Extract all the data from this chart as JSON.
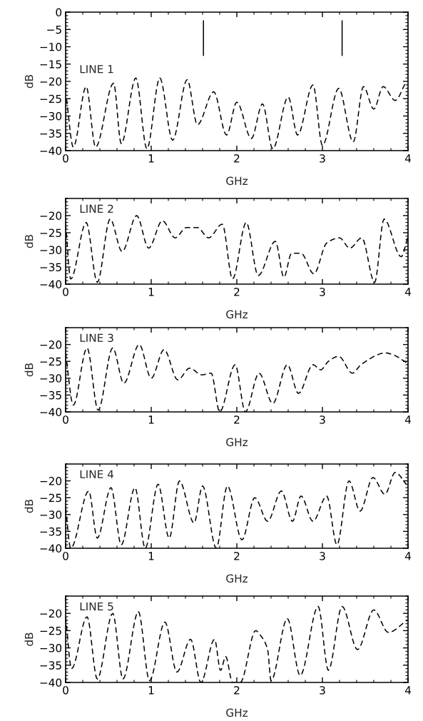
{
  "chart_data": [
    {
      "type": "line",
      "xlabel": "GHz",
      "ylabel": "dB",
      "annotations": [
        "LINE 1"
      ],
      "xlim": [
        0,
        4
      ],
      "xticks": [
        0,
        1,
        2,
        3,
        4
      ],
      "ylim": [
        -40,
        0
      ],
      "yticks": [
        -40,
        -35,
        -30,
        -25,
        -20,
        -15,
        -10,
        -5,
        0
      ],
      "line_style": "dashed",
      "series": [
        {
          "color": "#000000",
          "x": [
            0.01,
            0.09,
            0.24,
            0.35,
            0.56,
            0.65,
            0.82,
            0.95,
            1.1,
            1.25,
            1.42,
            1.54,
            1.73,
            1.88,
            2.0,
            2.17,
            2.3,
            2.42,
            2.6,
            2.71,
            2.89,
            3.0,
            3.19,
            3.36,
            3.48,
            3.6,
            3.71,
            3.85,
            3.97
          ],
          "values": [
            -25,
            -39,
            -21.5,
            -39,
            -20.5,
            -38,
            -19,
            -39.5,
            -19,
            -37,
            -19.5,
            -32.5,
            -23,
            -35.5,
            -26,
            -36.5,
            -26.5,
            -39.5,
            -24.5,
            -35.5,
            -21,
            -38.5,
            -22,
            -37.5,
            -21.5,
            -28,
            -21.5,
            -25.5,
            -20.5
          ]
        },
        {
          "color": "#000000",
          "line_style": "solid",
          "x": [
            1.61,
            1.61
          ],
          "values": [
            -2.5,
            -12.5
          ]
        },
        {
          "color": "#000000",
          "line_style": "solid",
          "x": [
            3.23,
            3.23
          ],
          "values": [
            -2.5,
            -12.5
          ]
        }
      ]
    },
    {
      "type": "line",
      "xlabel": "GHz",
      "ylabel": "dB",
      "annotations": [
        "LINE 2"
      ],
      "xlim": [
        0,
        4
      ],
      "xticks": [
        0,
        1,
        2,
        3,
        4
      ],
      "ylim": [
        -40,
        -15
      ],
      "yticks": [
        -40,
        -35,
        -30,
        -25,
        -20
      ],
      "line_style": "dashed",
      "series": [
        {
          "color": "#000000",
          "x": [
            0.0,
            0.06,
            0.24,
            0.37,
            0.52,
            0.66,
            0.83,
            0.97,
            1.13,
            1.28,
            1.41,
            1.54,
            1.67,
            1.83,
            1.95,
            2.11,
            2.25,
            2.45,
            2.55,
            2.64,
            2.75,
            2.9,
            3.05,
            3.2,
            3.32,
            3.46,
            3.61,
            3.72,
            3.92,
            4.0
          ],
          "values": [
            -22.5,
            -38.5,
            -22,
            -39.5,
            -21,
            -30.5,
            -20,
            -29.5,
            -21.5,
            -26.5,
            -23.5,
            -23.5,
            -26.5,
            -22.5,
            -38.5,
            -22,
            -37.5,
            -27.5,
            -38,
            -31,
            -31,
            -37,
            -28,
            -26.5,
            -29.5,
            -26.5,
            -39.5,
            -21,
            -32,
            -26
          ]
        }
      ]
    },
    {
      "type": "line",
      "xlabel": "GHz",
      "ylabel": "dB",
      "annotations": [
        "LINE 3"
      ],
      "xlim": [
        0,
        4
      ],
      "xticks": [
        0,
        1,
        2,
        3,
        4
      ],
      "ylim": [
        -40,
        -15
      ],
      "yticks": [
        -40,
        -35,
        -30,
        -25,
        -20
      ],
      "line_style": "dashed",
      "series": [
        {
          "color": "#000000",
          "x": [
            0.0,
            0.09,
            0.25,
            0.38,
            0.55,
            0.68,
            0.86,
            1.0,
            1.15,
            1.31,
            1.45,
            1.59,
            1.7,
            1.8,
            1.98,
            2.1,
            2.26,
            2.42,
            2.59,
            2.72,
            2.89,
            2.98,
            3.07,
            3.19,
            3.35,
            3.45,
            3.74,
            3.82,
            3.99
          ],
          "values": [
            -22.5,
            -38,
            -21,
            -39.5,
            -21,
            -31.5,
            -20,
            -30,
            -21.5,
            -30.5,
            -27,
            -29,
            -28.5,
            -40,
            -26,
            -40,
            -28.5,
            -37.5,
            -26,
            -34.5,
            -26,
            -27.5,
            -25,
            -23.5,
            -28.5,
            -26,
            -22.5,
            -23,
            -25.5
          ]
        }
      ]
    },
    {
      "type": "line",
      "xlabel": "GHz",
      "ylabel": "dB",
      "annotations": [
        "LINE 4"
      ],
      "xlim": [
        0,
        4
      ],
      "xticks": [
        0,
        1,
        2,
        3,
        4
      ],
      "ylim": [
        -40,
        -15
      ],
      "yticks": [
        -40,
        -35,
        -30,
        -25,
        -20
      ],
      "line_style": "dashed",
      "series": [
        {
          "color": "#000000",
          "x": [
            0.0,
            0.06,
            0.27,
            0.37,
            0.53,
            0.65,
            0.81,
            0.93,
            1.08,
            1.21,
            1.33,
            1.5,
            1.6,
            1.76,
            1.89,
            2.06,
            2.21,
            2.36,
            2.52,
            2.65,
            2.75,
            2.89,
            3.05,
            3.17,
            3.31,
            3.44,
            3.59,
            3.73,
            3.85,
            3.98
          ],
          "values": [
            -28,
            -40,
            -23,
            -37,
            -22,
            -39,
            -22,
            -40,
            -21,
            -37,
            -20,
            -32.5,
            -21.5,
            -40,
            -21.5,
            -37.5,
            -25,
            -32,
            -23,
            -32,
            -24.5,
            -32,
            -24.5,
            -39,
            -20,
            -29,
            -19,
            -24,
            -17.5,
            -21
          ]
        }
      ]
    },
    {
      "type": "line",
      "xlabel": "GHz",
      "ylabel": "dB",
      "annotations": [
        "LINE 5"
      ],
      "xlim": [
        0,
        4
      ],
      "xticks": [
        0,
        1,
        2,
        3,
        4
      ],
      "ylim": [
        -40,
        -15
      ],
      "yticks": [
        -40,
        -35,
        -30,
        -25,
        -20
      ],
      "line_style": "dashed",
      "series": [
        {
          "color": "#000000",
          "x": [
            0.0,
            0.07,
            0.25,
            0.37,
            0.55,
            0.67,
            0.85,
            0.98,
            1.16,
            1.3,
            1.46,
            1.58,
            1.74,
            1.81,
            1.87,
            1.95,
            2.04,
            2.22,
            2.28,
            2.36,
            2.4,
            2.59,
            2.74,
            2.95,
            3.07,
            3.23,
            3.41,
            3.6,
            3.77,
            3.99
          ],
          "values": [
            -21,
            -36,
            -21,
            -39,
            -20,
            -39,
            -19.5,
            -39.5,
            -22.5,
            -37,
            -27.5,
            -40,
            -27.5,
            -36.5,
            -32.5,
            -40,
            -40,
            -25,
            -26.5,
            -30.5,
            -39.5,
            -21.5,
            -38,
            -18,
            -36.5,
            -18,
            -30.5,
            -19,
            -25.5,
            -22
          ]
        }
      ]
    }
  ]
}
